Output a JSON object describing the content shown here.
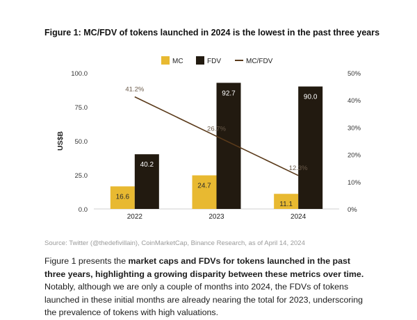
{
  "figure": {
    "title": "Figure 1: MC/FDV of tokens launched in 2024 is the lowest in the past three years",
    "source": "Source: Twitter (@thedefivillain), CoinMarketCap, Binance Research, as of April 14, 2024"
  },
  "paragraph": {
    "p1": "Figure 1 presents the ",
    "b1": "market caps and FDVs for tokens launched in the past three years, highlighting a growing disparity between these metrics over time.",
    "p2": " Notably, although we are only a couple of months into 2024, the FDVs of tokens launched in these initial months are already nearing the total for 2023, underscoring the prevalence of tokens with high valuations."
  },
  "chart_data": {
    "type": "bar",
    "categories": [
      "2022",
      "2023",
      "2024"
    ],
    "series": [
      {
        "name": "MC",
        "type": "bar",
        "axis": "left",
        "values": [
          16.6,
          24.7,
          11.1
        ],
        "labels": [
          "16.6",
          "24.7",
          "11.1"
        ],
        "color": "#E8B931"
      },
      {
        "name": "FDV",
        "type": "bar",
        "axis": "left",
        "values": [
          40.2,
          92.7,
          90.0
        ],
        "labels": [
          "40.2",
          "92.7",
          "90.0"
        ],
        "color": "#221A10"
      },
      {
        "name": "MC/FDV",
        "type": "line",
        "axis": "right",
        "values": [
          41.2,
          26.7,
          12.3
        ],
        "labels": [
          "41.2%",
          "26.7%",
          "12.3%"
        ],
        "color": "#5A3A1A"
      }
    ],
    "ylabel": "US$B",
    "ylim": [
      0,
      100
    ],
    "yticks": [
      "0.0",
      "25.0",
      "50.0",
      "75.0",
      "100.0"
    ],
    "y2lim": [
      0,
      50
    ],
    "y2ticks": [
      "0%",
      "10%",
      "20%",
      "30%",
      "40%",
      "50%"
    ],
    "grid": false,
    "legend": "top"
  }
}
